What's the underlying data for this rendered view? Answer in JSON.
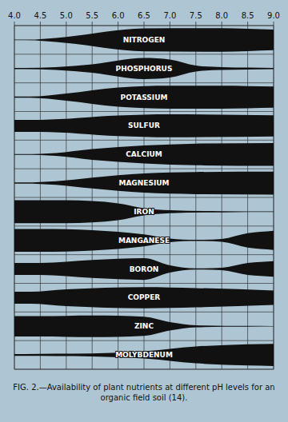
{
  "chart_data": {
    "type": "band",
    "title": "FIG. 2.—Availability of plant nutrients at different pH levels for an organic field soil (14).",
    "xlim": [
      4.0,
      9.0
    ],
    "xticks": [
      {
        "value": 4.0,
        "label": "4.0"
      },
      4.5,
      {
        "value": 5.0,
        "label": "5.0"
      },
      5.5,
      {
        "value": 6.0,
        "label": "6.0"
      },
      6.5,
      {
        "value": 7.0,
        "label": "7.0"
      },
      7.5,
      {
        "value": 8.0,
        "label": "8.0"
      },
      8.5,
      {
        "value": 9.0,
        "label": "9.0"
      }
    ],
    "ylim": [
      0,
      1
    ],
    "grid": true,
    "tick_labels": "x",
    "color": "#111111",
    "series": [
      {
        "name": "NITROGEN",
        "x": [
          4.0,
          4.2,
          5.0,
          6.5,
          8.0,
          9.0
        ],
        "values": [
          0.02,
          0.02,
          0.25,
          0.95,
          0.98,
          0.85
        ]
      },
      {
        "name": "PHOSPHORUS",
        "x": [
          4.0,
          4.2,
          4.8,
          5.5,
          6.5,
          7.0,
          7.5,
          8.0,
          8.5,
          9.0
        ],
        "values": [
          0.05,
          0.05,
          0.12,
          0.35,
          0.88,
          0.75,
          0.25,
          0.12,
          0.08,
          0.05
        ]
      },
      {
        "name": "POTASSIUM",
        "x": [
          4.0,
          4.3,
          5.0,
          6.0,
          7.0,
          8.0,
          9.0
        ],
        "values": [
          0.05,
          0.05,
          0.3,
          0.8,
          0.95,
          0.95,
          0.88
        ]
      },
      {
        "name": "SULFUR",
        "x": [
          4.0,
          4.5,
          6.0,
          7.0,
          9.0
        ],
        "values": [
          0.5,
          0.5,
          0.85,
          0.95,
          0.88
        ]
      },
      {
        "name": "CALCIUM",
        "x": [
          4.0,
          4.2,
          4.8,
          5.5,
          6.5,
          7.5,
          9.0
        ],
        "values": [
          0.04,
          0.04,
          0.12,
          0.45,
          0.75,
          0.9,
          0.95
        ]
      },
      {
        "name": "MAGNESIUM",
        "x": [
          4.0,
          4.2,
          4.8,
          5.5,
          6.5,
          7.5,
          9.0
        ],
        "values": [
          0.05,
          0.05,
          0.15,
          0.45,
          0.8,
          0.92,
          0.95
        ]
      },
      {
        "name": "IRON",
        "x": [
          4.0,
          5.0,
          6.0,
          6.5,
          7.0,
          8.0,
          9.0
        ],
        "values": [
          0.95,
          0.95,
          0.7,
          0.3,
          0.12,
          0.05,
          0.03
        ]
      },
      {
        "name": "MANGANESE",
        "x": [
          4.0,
          4.5,
          5.5,
          6.5,
          7.0,
          7.5,
          8.0,
          8.5,
          9.0
        ],
        "values": [
          0.95,
          0.95,
          0.85,
          0.5,
          0.15,
          0.05,
          0.12,
          0.6,
          0.8
        ]
      },
      {
        "name": "BORON",
        "x": [
          4.0,
          4.5,
          5.5,
          6.5,
          7.0,
          7.5,
          8.0,
          8.5,
          9.0
        ],
        "values": [
          0.5,
          0.5,
          0.75,
          0.9,
          0.3,
          0.05,
          0.1,
          0.5,
          0.65
        ]
      },
      {
        "name": "COPPER",
        "x": [
          4.0,
          4.3,
          5.0,
          6.5,
          7.5,
          9.0
        ],
        "values": [
          0.5,
          0.5,
          0.7,
          0.88,
          0.8,
          0.6
        ]
      },
      {
        "name": "ZINC",
        "x": [
          4.0,
          4.5,
          5.5,
          6.5,
          7.0,
          7.5,
          8.5,
          9.0
        ],
        "values": [
          0.85,
          0.85,
          0.9,
          0.8,
          0.35,
          0.08,
          0.03,
          0.02
        ]
      },
      {
        "name": "MOLYBDENUM",
        "x": [
          4.0,
          4.2,
          4.8,
          5.5,
          6.5,
          7.5,
          8.5,
          9.0
        ],
        "values": [
          0.08,
          0.08,
          0.1,
          0.12,
          0.3,
          0.7,
          0.88,
          0.92
        ]
      }
    ]
  }
}
